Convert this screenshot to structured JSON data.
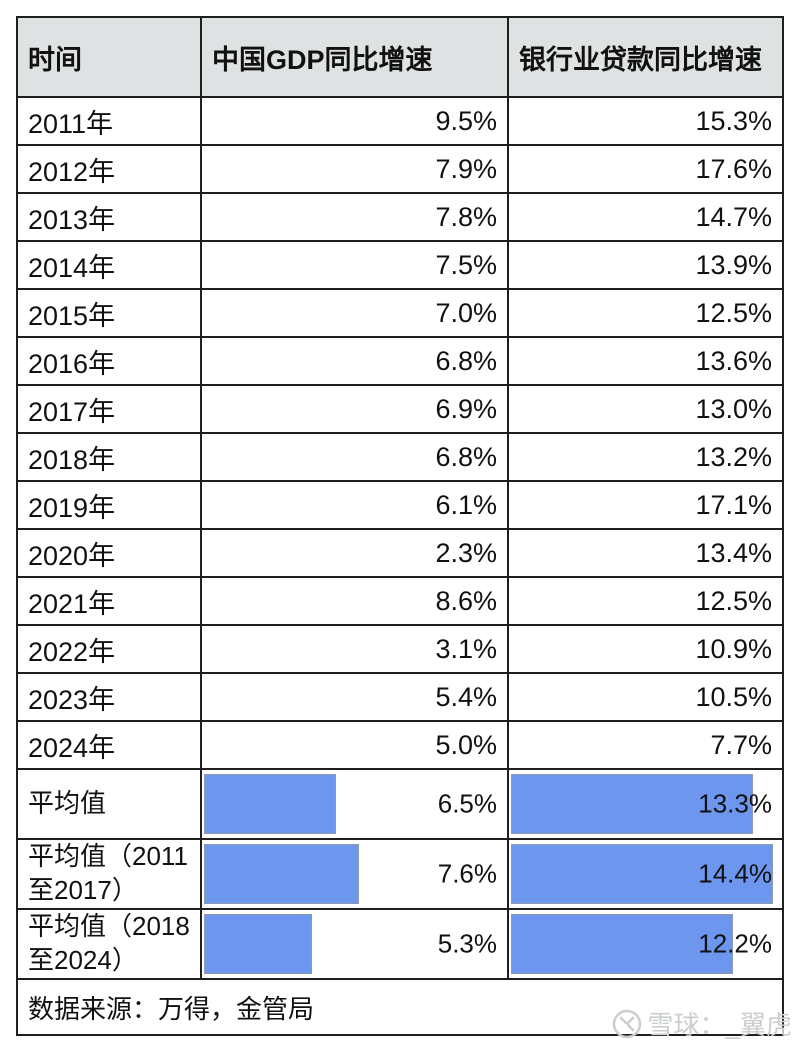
{
  "header": {
    "cells": [
      "时间",
      "中国GDP同比增速",
      "银行业贷款同比增速"
    ]
  },
  "years": [
    {
      "year": "2011年",
      "gdp": "9.5%",
      "loan": "15.3%"
    },
    {
      "year": "2012年",
      "gdp": "7.9%",
      "loan": "17.6%"
    },
    {
      "year": "2013年",
      "gdp": "7.8%",
      "loan": "14.7%"
    },
    {
      "year": "2014年",
      "gdp": "7.5%",
      "loan": "13.9%"
    },
    {
      "year": "2015年",
      "gdp": "7.0%",
      "loan": "12.5%"
    },
    {
      "year": "2016年",
      "gdp": "6.8%",
      "loan": "13.6%"
    },
    {
      "year": "2017年",
      "gdp": "6.9%",
      "loan": "13.0%"
    },
    {
      "year": "2018年",
      "gdp": "6.8%",
      "loan": "13.2%"
    },
    {
      "year": "2019年",
      "gdp": "6.1%",
      "loan": "17.1%"
    },
    {
      "year": "2020年",
      "gdp": "2.3%",
      "loan": "13.4%"
    },
    {
      "year": "2021年",
      "gdp": "8.6%",
      "loan": "12.5%"
    },
    {
      "year": "2022年",
      "gdp": "3.1%",
      "loan": "10.9%"
    },
    {
      "year": "2023年",
      "gdp": "5.4%",
      "loan": "10.5%"
    },
    {
      "year": "2024年",
      "gdp": "5.0%",
      "loan": "7.7%"
    }
  ],
  "averages": [
    {
      "label": "平均值",
      "label_lines": [
        "平均值"
      ],
      "gdp": "6.5%",
      "loan": "13.3%",
      "gdp_value": 6.5,
      "loan_value": 13.3
    },
    {
      "label": "平均值（2011至2017）",
      "label_lines": [
        "平均值（2011",
        "至2017）"
      ],
      "gdp": "7.6%",
      "loan": "14.4%",
      "gdp_value": 7.6,
      "loan_value": 14.4
    },
    {
      "label": "平均值（2018至2024）",
      "label_lines": [
        "平均值（2018",
        "至2024）"
      ],
      "gdp": "5.3%",
      "loan": "12.2%",
      "gdp_value": 5.3,
      "loan_value": 12.2
    }
  ],
  "footer": {
    "source": "数据来源：万得，金管局"
  },
  "watermark": {
    "text": "雪球：_翼虎"
  },
  "colors": {
    "bar_fill": "#6d96ef",
    "header_bg": "#dfe2e3",
    "border": "#1f1f1f",
    "watermark": "#cbced0"
  },
  "chart_data": {
    "type": "table",
    "title": "中国GDP同比增速与银行业贷款同比增速对比表",
    "columns": [
      "时间",
      "中国GDP同比增速",
      "银行业贷款同比增速"
    ],
    "rows": [
      [
        "2011年",
        9.5,
        15.3
      ],
      [
        "2012年",
        7.9,
        17.6
      ],
      [
        "2013年",
        7.8,
        14.7
      ],
      [
        "2014年",
        7.5,
        13.9
      ],
      [
        "2015年",
        7.0,
        12.5
      ],
      [
        "2016年",
        6.8,
        13.6
      ],
      [
        "2017年",
        6.9,
        13.0
      ],
      [
        "2018年",
        6.8,
        13.2
      ],
      [
        "2019年",
        6.1,
        17.1
      ],
      [
        "2020年",
        2.3,
        13.4
      ],
      [
        "2021年",
        8.6,
        12.5
      ],
      [
        "2022年",
        3.1,
        10.9
      ],
      [
        "2023年",
        5.4,
        10.5
      ],
      [
        "2024年",
        5.0,
        7.7
      ],
      [
        "平均值",
        6.5,
        13.3
      ],
      [
        "平均值（2011至2017）",
        7.6,
        14.4
      ],
      [
        "平均值（2018至2024）",
        5.3,
        12.2
      ]
    ],
    "data_bars": {
      "applies_to_rows": [
        "平均值",
        "平均值（2011至2017）",
        "平均值（2018至2024）"
      ],
      "axis_max": 15,
      "color": "#6d96ef"
    },
    "source": "数据来源：万得，金管局",
    "values_unit": "%"
  }
}
